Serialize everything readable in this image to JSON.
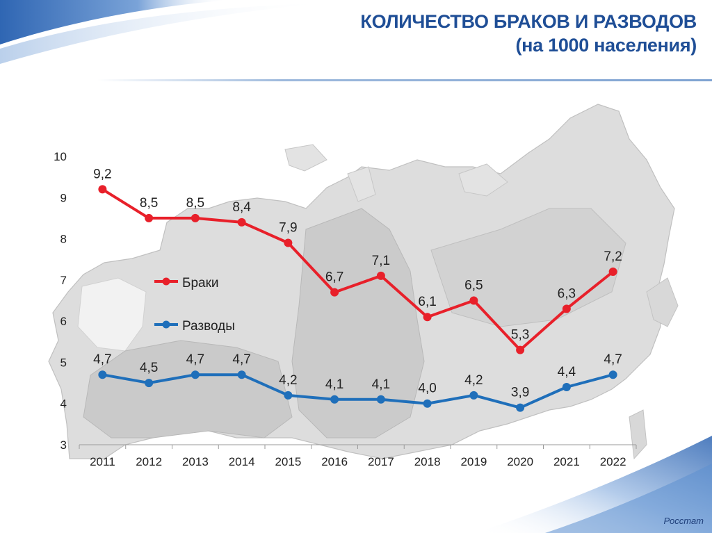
{
  "header": {
    "title": "КОЛИЧЕСТВО БРАКОВ И РАЗВОДОВ",
    "subtitle": "(на 1000 населения)"
  },
  "source": "Росстат",
  "colors": {
    "marriages": "#e8202a",
    "divorces": "#1f6fba",
    "accent": "#1f4e96",
    "map": "#d4d4d4"
  },
  "background_icon": "russia-map",
  "chart_data": {
    "type": "line",
    "title": "КОЛИЧЕСТВО БРАКОВ И РАЗВОДОВ",
    "subtitle": "(на 1000 населения)",
    "xlabel": "",
    "ylabel": "",
    "categories": [
      "2011",
      "2012",
      "2013",
      "2014",
      "2015",
      "2016",
      "2017",
      "2018",
      "2019",
      "2020",
      "2021",
      "2022"
    ],
    "ylim": [
      3,
      10
    ],
    "yticks": [
      3,
      4,
      5,
      6,
      7,
      8,
      9,
      10
    ],
    "grid": false,
    "legend_position": "left",
    "series": [
      {
        "name": "Браки",
        "color": "#e8202a",
        "values": [
          9.2,
          8.5,
          8.5,
          8.4,
          7.9,
          6.7,
          7.1,
          6.1,
          6.5,
          5.3,
          6.3,
          7.2
        ],
        "labels": [
          "9,2",
          "8,5",
          "8,5",
          "8,4",
          "7,9",
          "6,7",
          "7,1",
          "6,1",
          "6,5",
          "5,3",
          "6,3",
          "7,2"
        ]
      },
      {
        "name": "Разводы",
        "color": "#1f6fba",
        "values": [
          4.7,
          4.5,
          4.7,
          4.7,
          4.2,
          4.1,
          4.1,
          4.0,
          4.2,
          3.9,
          4.4,
          4.7
        ],
        "labels": [
          "4,7",
          "4,5",
          "4,7",
          "4,7",
          "4,2",
          "4,1",
          "4,1",
          "4,0",
          "4,2",
          "3,9",
          "4,4",
          "4,7"
        ]
      }
    ]
  }
}
